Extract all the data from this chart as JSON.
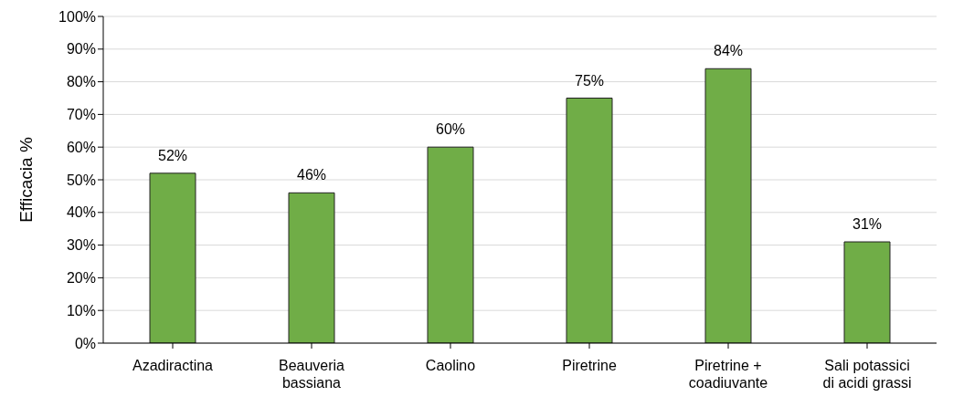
{
  "chart_data": {
    "type": "bar",
    "ylabel": "Efficacia %",
    "categories": [
      "Azadiractina",
      "Beauveria bassiana",
      "Caolino",
      "Piretrine",
      "Piretrine + coadiuvante",
      "Sali potassici di acidi grassi"
    ],
    "values": [
      52,
      46,
      60,
      75,
      84,
      31
    ],
    "value_labels": [
      "52%",
      "46%",
      "60%",
      "75%",
      "84%",
      "31%"
    ],
    "color": "#70ad47",
    "ylim": [
      0,
      100
    ],
    "yticks": [
      {
        "value": 0,
        "label": "0%"
      },
      {
        "value": 10,
        "label": "10%"
      },
      {
        "value": 20,
        "label": "20%"
      },
      {
        "value": 30,
        "label": "30%"
      },
      {
        "value": 40,
        "label": "40%"
      },
      {
        "value": 50,
        "label": "50%"
      },
      {
        "value": 60,
        "label": "60%"
      },
      {
        "value": 70,
        "label": "70%"
      },
      {
        "value": 80,
        "label": "80%"
      },
      {
        "value": 90,
        "label": "90%"
      },
      {
        "value": 100,
        "label": "100%"
      }
    ],
    "grid": "y",
    "legend": false
  }
}
